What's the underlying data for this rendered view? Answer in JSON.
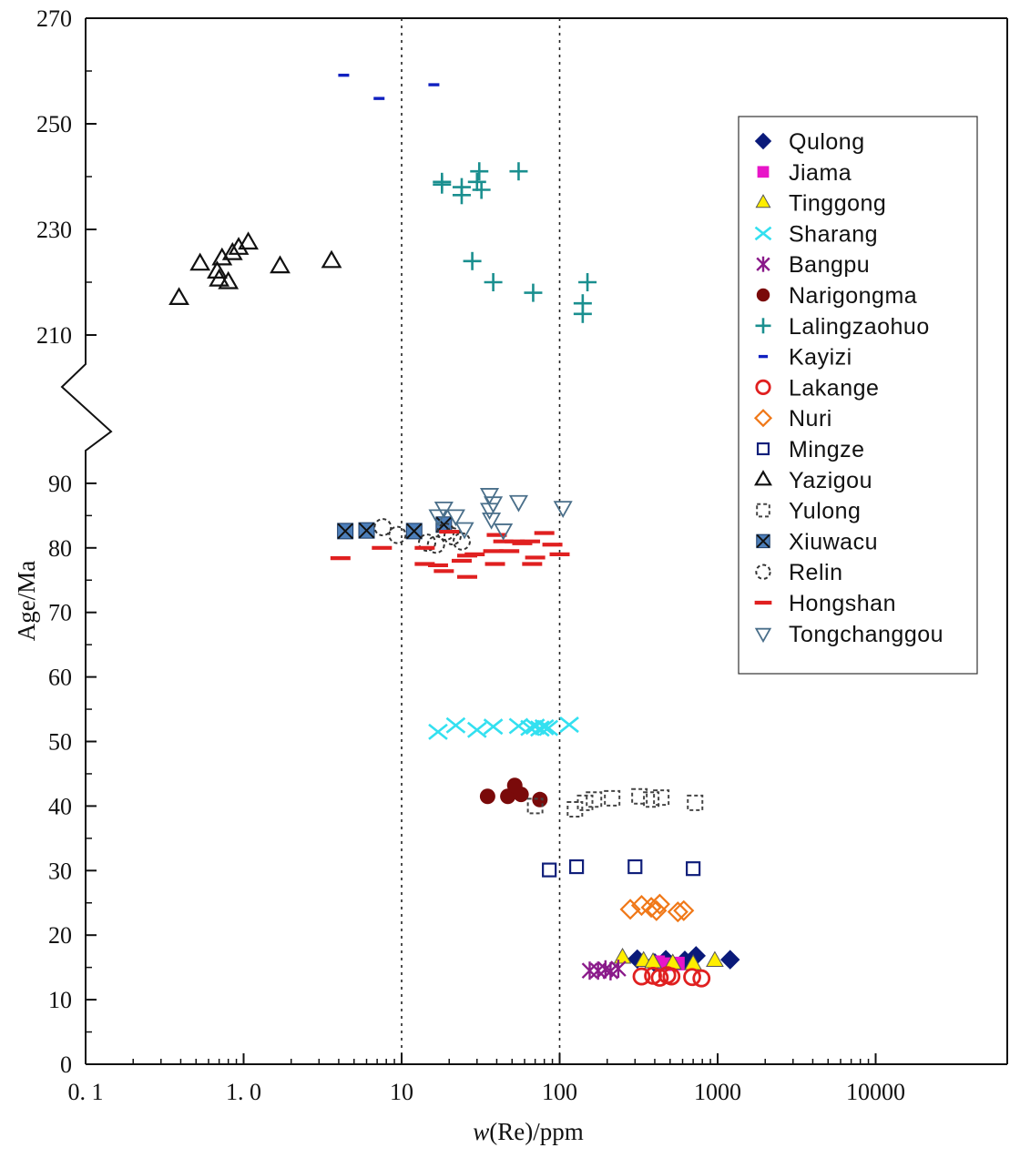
{
  "chart_data": {
    "type": "scatter",
    "xscale": "log",
    "xlabel": "w(Re)/ppm",
    "ylabel": "Age/Ma",
    "xlim": [
      0.1,
      6000
    ],
    "ylim": [
      0,
      270
    ],
    "axis_break": "between 95 and 205 Ma",
    "x_ticks": [
      {
        "value": 0.1,
        "label": "0. 1"
      },
      {
        "value": 1,
        "label": "1. 0"
      },
      {
        "value": 10,
        "label": "10"
      },
      {
        "value": 100,
        "label": "100"
      },
      {
        "value": 1000,
        "label": "1000"
      },
      {
        "value": 10000,
        "label": "10000"
      }
    ],
    "y_ticks": [
      0,
      10,
      20,
      30,
      40,
      50,
      60,
      70,
      80,
      90,
      210,
      230,
      250,
      270
    ],
    "reference_lines_x": [
      10,
      100
    ],
    "grid": false,
    "legend_position": "top-right",
    "series": [
      {
        "name": "Qulong",
        "marker": "diamond-filled",
        "color": "#0a1a7a",
        "points": [
          [
            310,
            16.3
          ],
          [
            470,
            16.2
          ],
          [
            620,
            16.1
          ],
          [
            730,
            16.8
          ],
          [
            1200,
            16.2
          ],
          [
            400,
            15.7
          ]
        ]
      },
      {
        "name": "Jiama",
        "marker": "square-filled",
        "color": "#e815c8",
        "points": [
          [
            480,
            15.5
          ],
          [
            560,
            15.6
          ],
          [
            420,
            15.8
          ]
        ]
      },
      {
        "name": "Tinggong",
        "marker": "triangle-filled",
        "color": "#ffee00",
        "points": [
          [
            250,
            16.5
          ],
          [
            340,
            16
          ],
          [
            390,
            15.8
          ],
          [
            520,
            15.6
          ],
          [
            700,
            15.5
          ],
          [
            960,
            16
          ]
        ]
      },
      {
        "name": "Sharang",
        "marker": "x",
        "color": "#33e0f0",
        "points": [
          [
            17,
            51.5
          ],
          [
            22,
            52.5
          ],
          [
            30,
            51.8
          ],
          [
            38,
            52.3
          ],
          [
            55,
            52.4
          ],
          [
            65,
            52.1
          ],
          [
            70,
            52.3
          ],
          [
            75,
            52
          ],
          [
            80,
            52.2
          ],
          [
            85,
            52.1
          ],
          [
            115,
            52.6
          ]
        ]
      },
      {
        "name": "Bangpu",
        "marker": "star-x",
        "color": "#8a1a8a",
        "points": [
          [
            155,
            14.5
          ],
          [
            175,
            14.5
          ],
          [
            195,
            14.7
          ],
          [
            210,
            14.4
          ],
          [
            235,
            14.8
          ]
        ]
      },
      {
        "name": "Narigongma",
        "marker": "circle-filled",
        "color": "#7a0a0a",
        "points": [
          [
            35,
            41.5
          ],
          [
            47,
            41.5
          ],
          [
            52,
            43.2
          ],
          [
            57,
            41.8
          ],
          [
            75,
            41
          ]
        ]
      },
      {
        "name": "Lalingzaohuo",
        "marker": "plus",
        "color": "#1a8f8f",
        "points": [
          [
            18,
            238.5
          ],
          [
            18,
            239
          ],
          [
            24,
            236.5
          ],
          [
            24,
            238
          ],
          [
            30,
            239
          ],
          [
            31,
            241
          ],
          [
            32,
            237.5
          ],
          [
            55,
            241
          ],
          [
            28,
            224
          ],
          [
            38,
            220
          ],
          [
            68,
            218
          ],
          [
            140,
            216
          ],
          [
            140,
            214
          ],
          [
            150,
            220
          ]
        ]
      },
      {
        "name": "Kayizi",
        "marker": "dash",
        "color": "#1020c0",
        "points": [
          [
            4.3,
            259.2
          ],
          [
            7.2,
            254.8
          ],
          [
            16,
            257.4
          ]
        ]
      },
      {
        "name": "Lakange",
        "marker": "circle-open",
        "color": "#e02020",
        "points": [
          [
            330,
            13.6
          ],
          [
            390,
            13.7
          ],
          [
            430,
            13.4
          ],
          [
            480,
            13.8
          ],
          [
            510,
            13.6
          ],
          [
            690,
            13.5
          ],
          [
            790,
            13.3
          ]
        ]
      },
      {
        "name": "Nuri",
        "marker": "diamond-open",
        "color": "#f07818",
        "points": [
          [
            280,
            24
          ],
          [
            330,
            24.6
          ],
          [
            380,
            24.3
          ],
          [
            410,
            23.8
          ],
          [
            430,
            24.8
          ],
          [
            560,
            23.6
          ],
          [
            610,
            23.8
          ]
        ]
      },
      {
        "name": "Mingze",
        "marker": "square-open",
        "color": "#101f7a",
        "points": [
          [
            86,
            30.1
          ],
          [
            128,
            30.6
          ],
          [
            300,
            30.6
          ],
          [
            700,
            30.3
          ]
        ]
      },
      {
        "name": "Yazigou",
        "marker": "triangle-open",
        "color": "#111111",
        "points": [
          [
            0.39,
            217
          ],
          [
            0.53,
            223.5
          ],
          [
            0.68,
            222
          ],
          [
            0.7,
            220.5
          ],
          [
            0.73,
            224.5
          ],
          [
            0.8,
            220
          ],
          [
            0.85,
            225.5
          ],
          [
            0.93,
            226.5
          ],
          [
            1.07,
            227.5
          ],
          [
            1.7,
            223
          ],
          [
            3.6,
            224
          ]
        ]
      },
      {
        "name": "Yulong",
        "marker": "square-dashed",
        "color": "#444444",
        "points": [
          [
            70,
            40
          ],
          [
            125,
            39.5
          ],
          [
            145,
            40.5
          ],
          [
            165,
            41
          ],
          [
            215,
            41.2
          ],
          [
            320,
            41.5
          ],
          [
            380,
            41
          ],
          [
            440,
            41.3
          ],
          [
            720,
            40.5
          ]
        ]
      },
      {
        "name": "Xiuwacu",
        "marker": "square-x",
        "color": "#4d7fba",
        "points": [
          [
            4.4,
            82.6
          ],
          [
            6,
            82.7
          ],
          [
            12,
            82.6
          ],
          [
            18.5,
            83.6
          ]
        ]
      },
      {
        "name": "Relin",
        "marker": "circle-dashed",
        "color": "#333333",
        "points": [
          [
            7.6,
            83.2
          ],
          [
            9.4,
            82
          ],
          [
            14.5,
            80.8
          ],
          [
            16.5,
            80.5
          ],
          [
            19,
            82.5
          ],
          [
            21,
            81.8
          ],
          [
            24,
            81
          ]
        ]
      },
      {
        "name": "Hongshan",
        "marker": "dash-bold",
        "color": "#e02020",
        "points": [
          [
            4.1,
            78.4
          ],
          [
            7.5,
            80
          ],
          [
            14,
            80
          ],
          [
            14,
            77.5
          ],
          [
            17,
            77.3
          ],
          [
            18.5,
            76.4
          ],
          [
            20,
            82.5
          ],
          [
            24,
            78
          ],
          [
            26,
            78.8
          ],
          [
            29,
            79
          ],
          [
            26,
            75.5
          ],
          [
            38,
            79.5
          ],
          [
            39,
            77.5
          ],
          [
            40,
            82
          ],
          [
            44,
            81
          ],
          [
            48,
            79.5
          ],
          [
            52,
            81
          ],
          [
            58,
            80.7
          ],
          [
            65,
            81
          ],
          [
            67,
            77.5
          ],
          [
            70,
            78.5
          ],
          [
            80,
            82.3
          ],
          [
            90,
            80.5
          ],
          [
            100,
            79
          ]
        ]
      },
      {
        "name": "Tongchanggou",
        "marker": "triangle-down-open",
        "color": "#4a6f8a",
        "points": [
          [
            17,
            85
          ],
          [
            18.5,
            86.2
          ],
          [
            22,
            85
          ],
          [
            25,
            83
          ],
          [
            36,
            88.3
          ],
          [
            36,
            86
          ],
          [
            37,
            84.5
          ],
          [
            38,
            87
          ],
          [
            44,
            82.8
          ],
          [
            55,
            87.2
          ],
          [
            105,
            86.3
          ]
        ]
      }
    ]
  }
}
